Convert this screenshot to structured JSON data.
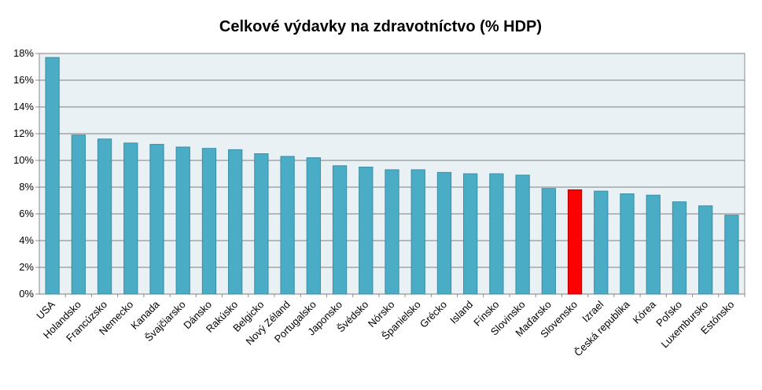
{
  "chart_data": {
    "type": "bar",
    "title": "Celkové výdavky na zdravotníctvo (% HDP)",
    "xlabel": "",
    "ylabel": "",
    "ylim": [
      0,
      18
    ],
    "y_ticks": [
      "0%",
      "2%",
      "4%",
      "6%",
      "8%",
      "10%",
      "12%",
      "14%",
      "16%",
      "18%"
    ],
    "grid": true,
    "legend": "none",
    "categories": [
      "USA",
      "Holandsko",
      "Francúzsko",
      "Nemecko",
      "Kanada",
      "Švajčiarsko",
      "Dánsko",
      "Rakúsko",
      "Belgicko",
      "Nový Zéland",
      "Portugalsko",
      "Japonsko",
      "Švédsko",
      "Nórsko",
      "Španielsko",
      "Grécko",
      "Island",
      "Fínsko",
      "Slovinsko",
      "Maďarsko",
      "Slovensko",
      "Izrael",
      "Česká republika",
      "Kórea",
      "Poľsko",
      "Luxembursko",
      "Estónsko"
    ],
    "values": [
      17.7,
      11.9,
      11.6,
      11.3,
      11.2,
      11.0,
      10.9,
      10.8,
      10.5,
      10.3,
      10.2,
      9.6,
      9.5,
      9.3,
      9.3,
      9.1,
      9.0,
      9.0,
      8.9,
      7.9,
      7.8,
      7.7,
      7.5,
      7.4,
      6.9,
      6.6,
      5.9
    ],
    "highlight_category": "Slovensko",
    "colors": {
      "bar": "#4bacc6",
      "bar_stroke": "#3a8ea6",
      "highlight": "#ff0000",
      "highlight_stroke": "#b00000",
      "plot_bg": "#e9f1f4",
      "grid": "#7f7f7f"
    }
  }
}
